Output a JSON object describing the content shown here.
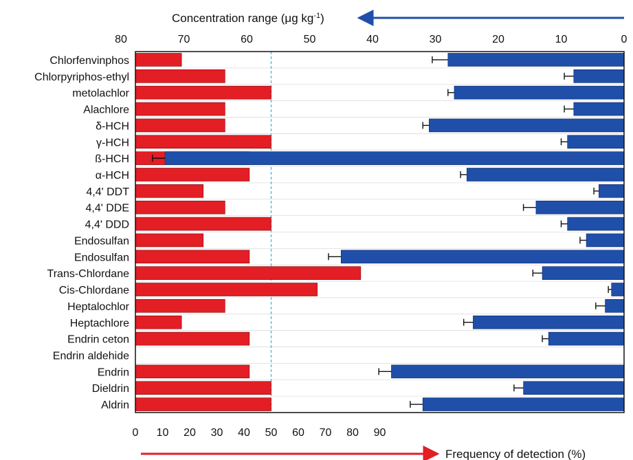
{
  "chart_data": {
    "type": "bar",
    "title": "",
    "categories": [
      "Chlorfenvinphos",
      "Chlorpyriphos-ethyl",
      "metolachlor",
      "Alachlore",
      "δ-HCH",
      "γ-HCH",
      "ß-HCH",
      "α-HCH",
      "4,4' DDT",
      "4,4' DDE",
      "4,4' DDD",
      "Endosulfan",
      "Endosulfan",
      "Trans-Chlordane",
      "Cis-Chlordane",
      "Heptalochlor",
      "Heptachlore",
      "Endrin ceton",
      "Endrin aldehide",
      "Endrin",
      "Dieldrin",
      "Aldrin"
    ],
    "frequency": {
      "label": "Frequency of detection (%)",
      "ticks": [
        "0",
        "10",
        "20",
        "30",
        "40",
        "50",
        "60",
        "70",
        "80",
        "90"
      ],
      "range": [
        0,
        100
      ],
      "reference_line": 50,
      "color": "#e31e24",
      "values": [
        17,
        33,
        50,
        33,
        33,
        50,
        42,
        42,
        25,
        33,
        50,
        25,
        42,
        83,
        67,
        33,
        17,
        42,
        0,
        42,
        50,
        50
      ]
    },
    "concentration": {
      "label_prefix": "Concentration range (μg kg",
      "label_sup": "-1",
      "label_suffix": ")",
      "ticks": [
        "80",
        "70",
        "60",
        "50",
        "40",
        "30",
        "20",
        "10",
        "0"
      ],
      "range": [
        0,
        82
      ],
      "direction": "right-to-left",
      "color": "#1f4fa8",
      "values": [
        28,
        8,
        27,
        8,
        31,
        9,
        73,
        25,
        4,
        14,
        9,
        6,
        45,
        13,
        2,
        3,
        24,
        12,
        0,
        37,
        16,
        32
      ],
      "errors": [
        2.5,
        1.5,
        1,
        1.5,
        1,
        1,
        2,
        1,
        0.8,
        2,
        1,
        1,
        2,
        1.5,
        0.5,
        1.5,
        1.5,
        1,
        0,
        2,
        1.5,
        2
      ]
    },
    "grid": true,
    "legend": "none"
  }
}
